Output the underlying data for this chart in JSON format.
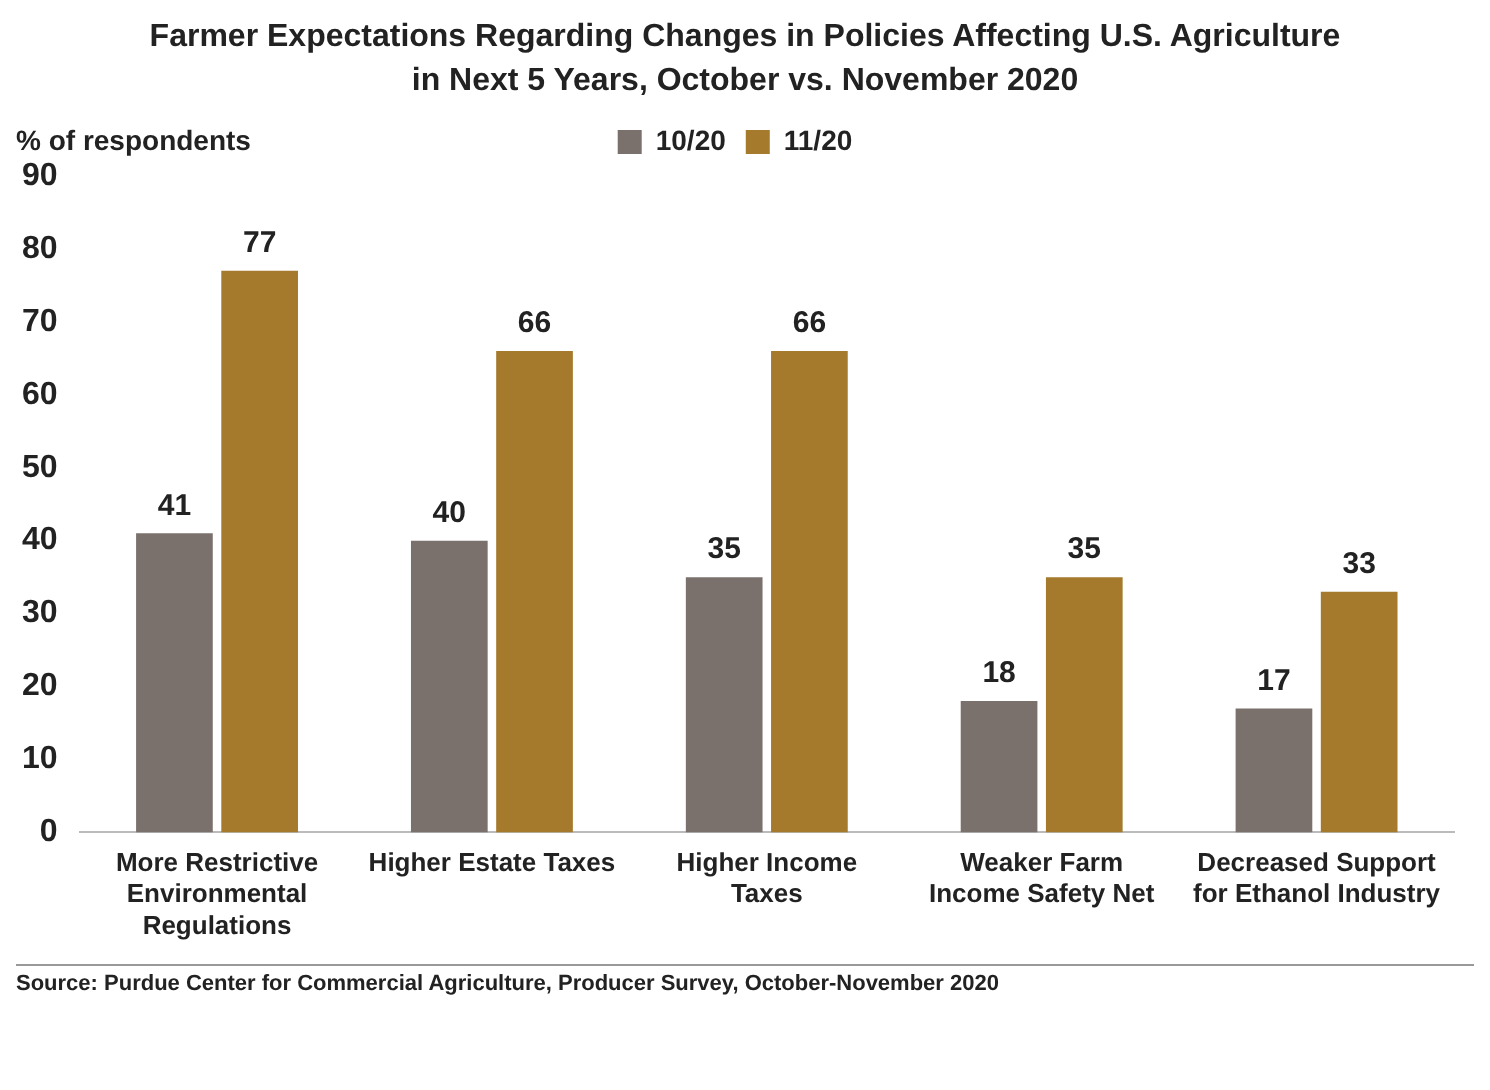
{
  "chart_data": {
    "type": "bar",
    "title": "Farmer Expectations Regarding Changes in Policies Affecting U.S. Agriculture in Next 5 Years, October vs. November 2020",
    "ylabel": "% of respondents",
    "categories": [
      "More Restrictive Environmental Regulations",
      "Higher Estate Taxes",
      "Higher Income Taxes",
      "Weaker Farm Income Safety Net",
      "Decreased Support for Ethanol Industry"
    ],
    "series": [
      {
        "name": "10/20",
        "color": "#7a716c",
        "values": [
          41,
          40,
          35,
          18,
          17
        ]
      },
      {
        "name": "11/20",
        "color": "#a57a2c",
        "values": [
          77,
          66,
          66,
          35,
          33
        ]
      }
    ],
    "ylim": [
      0,
      90
    ],
    "yticks": [
      0,
      10,
      20,
      30,
      40,
      50,
      60,
      70,
      80,
      90
    ],
    "grid": false,
    "legend": "top",
    "data_labels": true,
    "annotations": [
      "Source: Purdue Center for Commercial Agriculture, Producer Survey, October-November 2020"
    ]
  }
}
